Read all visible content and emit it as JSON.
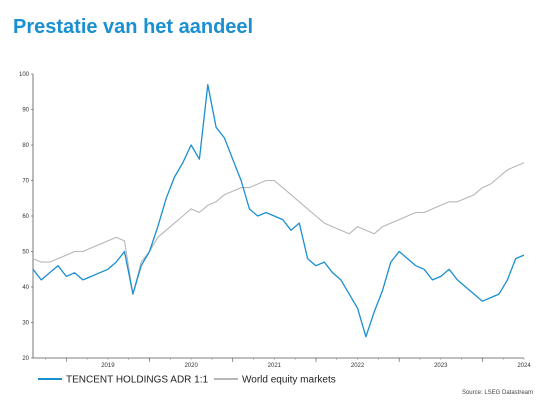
{
  "header": {
    "title": "Prestatie van het aandeel"
  },
  "chart_data": {
    "type": "line",
    "title": "Prestatie van het aandeel",
    "xlabel": "",
    "ylabel": "",
    "xlim": [
      2018.6,
      2024.5
    ],
    "ylim": [
      20,
      100
    ],
    "yticks": [
      20,
      30,
      40,
      50,
      60,
      70,
      80,
      90,
      100
    ],
    "xticks": [
      {
        "label": "2019",
        "x": 2019.0
      },
      {
        "label": "2020",
        "x": 2020.0
      },
      {
        "label": "2021",
        "x": 2021.0
      },
      {
        "label": "2022",
        "x": 2022.0
      },
      {
        "label": "2023",
        "x": 2023.0
      },
      {
        "label": "2024",
        "x": 2024.0
      }
    ],
    "grid": false,
    "legend": "bottom-left",
    "source": "Source: LSEG Datastream",
    "series": [
      {
        "name": "TENCENT HOLDINGS ADR 1:1",
        "color": "#1a8fd1",
        "x": [
          2018.6,
          2018.7,
          2018.8,
          2018.9,
          2019.0,
          2019.1,
          2019.2,
          2019.3,
          2019.4,
          2019.5,
          2019.6,
          2019.7,
          2019.8,
          2019.9,
          2020.0,
          2020.1,
          2020.2,
          2020.3,
          2020.4,
          2020.5,
          2020.6,
          2020.7,
          2020.8,
          2020.9,
          2021.0,
          2021.1,
          2021.2,
          2021.3,
          2021.4,
          2021.5,
          2021.6,
          2021.7,
          2021.8,
          2021.9,
          2022.0,
          2022.1,
          2022.2,
          2022.3,
          2022.4,
          2022.5,
          2022.6,
          2022.7,
          2022.8,
          2022.9,
          2023.0,
          2023.1,
          2023.2,
          2023.3,
          2023.4,
          2023.5,
          2023.6,
          2023.7,
          2023.8,
          2023.9,
          2024.0,
          2024.1,
          2024.2,
          2024.3,
          2024.4,
          2024.5
        ],
        "values": [
          45,
          42,
          44,
          46,
          43,
          44,
          42,
          43,
          44,
          45,
          47,
          50,
          38,
          46,
          50,
          57,
          65,
          71,
          75,
          80,
          76,
          97,
          85,
          82,
          76,
          70,
          62,
          60,
          61,
          60,
          59,
          56,
          58,
          48,
          46,
          47,
          44,
          42,
          38,
          34,
          26,
          33,
          39,
          47,
          50,
          48,
          46,
          45,
          42,
          43,
          45,
          42,
          40,
          38,
          36,
          37,
          38,
          42,
          48,
          49
        ]
      },
      {
        "name": "World equity markets",
        "color": "#b7b7b7",
        "x": [
          2018.6,
          2018.7,
          2018.8,
          2018.9,
          2019.0,
          2019.1,
          2019.2,
          2019.3,
          2019.4,
          2019.5,
          2019.6,
          2019.7,
          2019.8,
          2019.9,
          2020.0,
          2020.1,
          2020.2,
          2020.3,
          2020.4,
          2020.5,
          2020.6,
          2020.7,
          2020.8,
          2020.9,
          2021.0,
          2021.1,
          2021.2,
          2021.3,
          2021.4,
          2021.5,
          2021.6,
          2021.7,
          2021.8,
          2021.9,
          2022.0,
          2022.1,
          2022.2,
          2022.3,
          2022.4,
          2022.5,
          2022.6,
          2022.7,
          2022.8,
          2022.9,
          2023.0,
          2023.1,
          2023.2,
          2023.3,
          2023.4,
          2023.5,
          2023.6,
          2023.7,
          2023.8,
          2023.9,
          2024.0,
          2024.1,
          2024.2,
          2024.3,
          2024.4,
          2024.5
        ],
        "values": [
          48,
          47,
          47,
          48,
          49,
          50,
          50,
          51,
          52,
          53,
          54,
          53,
          38,
          47,
          50,
          54,
          56,
          58,
          60,
          62,
          61,
          63,
          64,
          66,
          67,
          68,
          68,
          69,
          70,
          70,
          68,
          66,
          64,
          62,
          60,
          58,
          57,
          56,
          55,
          57,
          56,
          55,
          57,
          58,
          59,
          60,
          61,
          61,
          62,
          63,
          64,
          64,
          65,
          66,
          68,
          69,
          71,
          73,
          74,
          75
        ]
      }
    ]
  }
}
